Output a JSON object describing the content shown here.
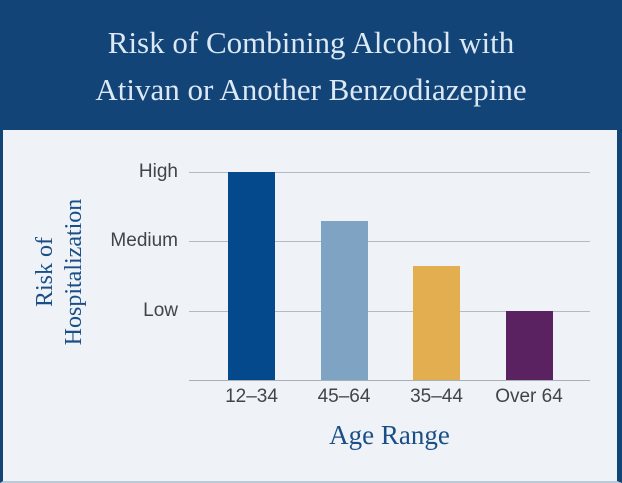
{
  "header": {
    "title_line1": "Risk of Combining Alcohol with",
    "title_line2": "Ativan or Another Benzodiazepine"
  },
  "colors": {
    "header_bg": "#134478",
    "page_bg": "#EFF3F7",
    "title_text": "#DCE9F5",
    "navy_text": "#1A4E87",
    "axis_text": "#40454B",
    "gridline": "#B3BAC1",
    "baseline": "#A9B1B8",
    "border_bottom": "#B9C9D8"
  },
  "chart_data": {
    "type": "bar",
    "title": "Risk of Combining Alcohol with Ativan or Another Benzodiazepine",
    "xlabel": "Age Range",
    "ylabel": "Risk of Hospitalization",
    "ylabel_lines": [
      "Risk of",
      "Hospitalization"
    ],
    "categories": [
      "12–34",
      "45–64",
      "35–44",
      "Over 64"
    ],
    "values": [
      3.0,
      2.3,
      1.65,
      1.0
    ],
    "yticks": [
      {
        "label": "High",
        "value": 3
      },
      {
        "label": "Medium",
        "value": 2
      },
      {
        "label": "Low",
        "value": 1
      }
    ],
    "ylim": [
      0,
      3
    ],
    "value_scale_note": "Low=1, Medium=2, High=3",
    "bar_colors": [
      "#03498B",
      "#7FA3C2",
      "#E2AE50",
      "#5B2262"
    ],
    "grid": true,
    "legend": false
  }
}
